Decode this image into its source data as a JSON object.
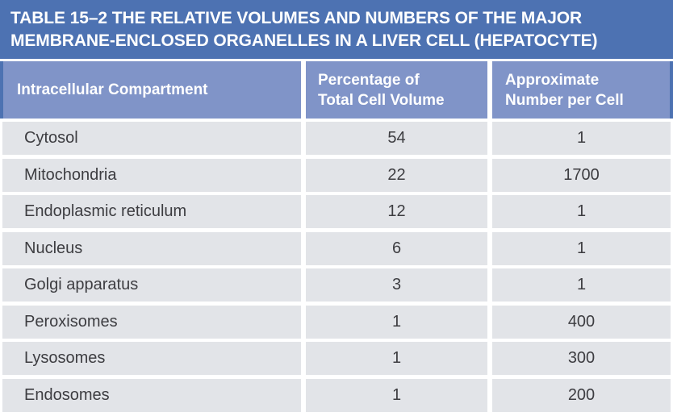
{
  "colors": {
    "title_blue": "#4d72b2",
    "header_blue": "#8094c8",
    "row_gray": "#e2e4e8",
    "gap": "#ffffff",
    "text_light": "#ffffff",
    "text_dark": "#3d3d41"
  },
  "figure": {
    "title_lines": [
      "TABLE 15–2 THE RELATIVE VOLUMES AND NUMBERS OF THE MAJOR",
      "MEMBRANE-ENCLOSED ORGANELLES IN A LIVER CELL (HEPATOCYTE)"
    ]
  },
  "table": {
    "headers": [
      {
        "line1": "Intracellular Compartment"
      },
      {
        "line1": "Percentage of",
        "line2": "Total Cell Volume"
      },
      {
        "line1": "Approximate",
        "line2": "Number per Cell"
      }
    ],
    "rows": [
      {
        "compartment": "Cytosol",
        "volume_pct": "54",
        "number_per_cell": "1"
      },
      {
        "compartment": "Mitochondria",
        "volume_pct": "22",
        "number_per_cell": "1700"
      },
      {
        "compartment": "Endoplasmic reticulum",
        "volume_pct": "12",
        "number_per_cell": "1"
      },
      {
        "compartment": "Nucleus",
        "volume_pct": "6",
        "number_per_cell": "1"
      },
      {
        "compartment": "Golgi apparatus",
        "volume_pct": "3",
        "number_per_cell": "1"
      },
      {
        "compartment": "Peroxisomes",
        "volume_pct": "1",
        "number_per_cell": "400"
      },
      {
        "compartment": "Lysosomes",
        "volume_pct": "1",
        "number_per_cell": "300"
      },
      {
        "compartment": "Endosomes",
        "volume_pct": "1",
        "number_per_cell": "200"
      }
    ]
  },
  "chart_data": {
    "type": "table",
    "title": "TABLE 15–2 THE RELATIVE VOLUMES AND NUMBERS OF THE MAJOR MEMBRANE-ENCLOSED ORGANELLES IN A LIVER CELL (HEPATOCYTE)",
    "columns": [
      "Intracellular Compartment",
      "Percentage of Total Cell Volume",
      "Approximate Number per Cell"
    ],
    "rows": [
      [
        "Cytosol",
        54,
        1
      ],
      [
        "Mitochondria",
        22,
        1700
      ],
      [
        "Endoplasmic reticulum",
        12,
        1
      ],
      [
        "Nucleus",
        6,
        1
      ],
      [
        "Golgi apparatus",
        3,
        1
      ],
      [
        "Peroxisomes",
        1,
        400
      ],
      [
        "Lysosomes",
        1,
        300
      ],
      [
        "Endosomes",
        1,
        200
      ]
    ]
  }
}
